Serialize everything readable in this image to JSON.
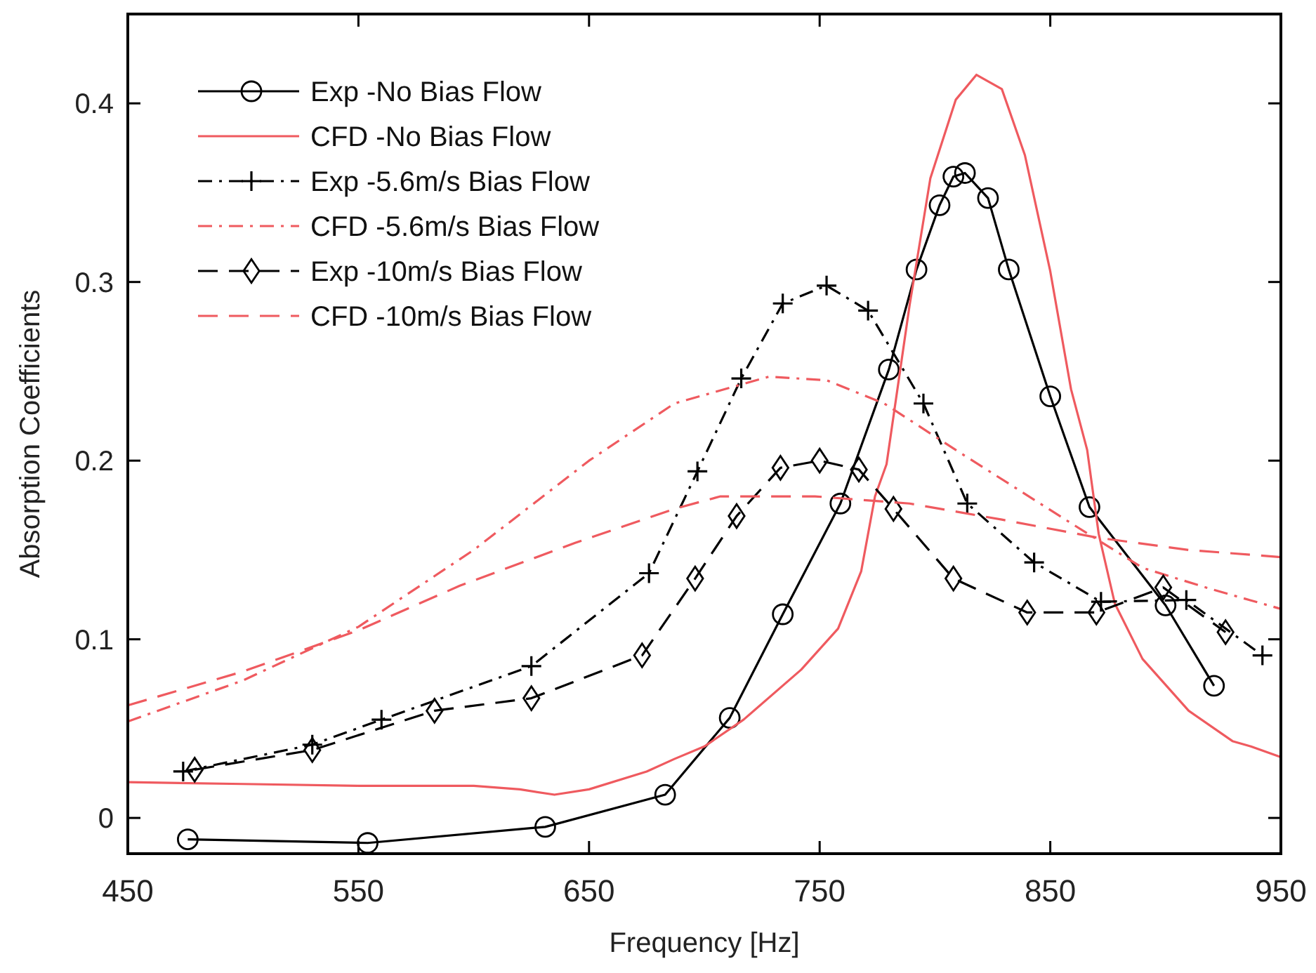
{
  "chart_data": {
    "type": "line",
    "xlabel": "Frequency [Hz]",
    "ylabel": "Absorption Coefficients",
    "xlim": [
      450,
      950
    ],
    "ylim": [
      -0.02,
      0.45
    ],
    "xticks": [
      450,
      550,
      650,
      750,
      850,
      950
    ],
    "yticks": [
      {
        "value": 0,
        "label": "0"
      },
      0.1,
      0.2,
      0.3,
      0.4
    ],
    "grid": false,
    "legend": "top left",
    "series": [
      {
        "name": "Exp -No Bias Flow",
        "color": "#000000",
        "marker": "circle",
        "line_style": "solid",
        "x": [
          476,
          554,
          631,
          683,
          711,
          734,
          759,
          780,
          792,
          802,
          808,
          813,
          823,
          832,
          850,
          867,
          900,
          921
        ],
        "values": [
          -0.012,
          -0.014,
          -0.005,
          0.013,
          0.056,
          0.114,
          0.176,
          0.251,
          0.307,
          0.343,
          0.359,
          0.361,
          0.347,
          0.307,
          0.236,
          0.174,
          0.119,
          0.074
        ]
      },
      {
        "name": "CFD -No Bias Flow",
        "color": "#ef5a5f",
        "marker": "none",
        "line_style": "solid",
        "x": [
          450,
          500,
          550,
          600,
          620,
          635,
          650,
          675,
          687,
          700,
          717,
          742,
          758,
          768,
          774,
          779,
          789,
          798,
          809,
          818,
          829,
          839,
          850,
          859,
          866,
          871,
          878,
          890,
          910,
          929,
          937,
          950
        ],
        "values": [
          0.02,
          0.019,
          0.018,
          0.018,
          0.016,
          0.013,
          0.016,
          0.026,
          0.033,
          0.04,
          0.055,
          0.083,
          0.106,
          0.138,
          0.18,
          0.198,
          0.287,
          0.358,
          0.402,
          0.416,
          0.408,
          0.371,
          0.306,
          0.24,
          0.206,
          0.159,
          0.12,
          0.089,
          0.06,
          0.043,
          0.04,
          0.034
        ]
      },
      {
        "name": "Exp -5.6m/s Bias Flow",
        "color": "#000000",
        "marker": "cross",
        "line_style": "dashdot",
        "x": [
          474,
          530,
          560,
          625,
          676,
          697,
          716,
          734,
          753,
          771,
          795,
          814,
          843,
          872,
          909,
          942
        ],
        "values": [
          0.026,
          0.041,
          0.055,
          0.085,
          0.137,
          0.194,
          0.246,
          0.288,
          0.298,
          0.284,
          0.232,
          0.176,
          0.143,
          0.121,
          0.122,
          0.091
        ]
      },
      {
        "name": "CFD -5.6m/s Bias Flow",
        "color": "#ef5a5f",
        "marker": "none",
        "line_style": "dashdot",
        "x": [
          450,
          500,
          550,
          600,
          650,
          687,
          728,
          753,
          778,
          809,
          859,
          890,
          920,
          950
        ],
        "values": [
          0.054,
          0.077,
          0.107,
          0.15,
          0.2,
          0.232,
          0.247,
          0.245,
          0.232,
          0.206,
          0.165,
          0.14,
          0.128,
          0.117
        ]
      },
      {
        "name": "Exp -10m/s Bias Flow",
        "color": "#000000",
        "marker": "diamond",
        "line_style": "dashed",
        "x": [
          479,
          530,
          583,
          625,
          673,
          696,
          714,
          733,
          750,
          767,
          782,
          808,
          840,
          870,
          899,
          926
        ],
        "values": [
          0.027,
          0.038,
          0.06,
          0.067,
          0.091,
          0.134,
          0.169,
          0.196,
          0.2,
          0.195,
          0.173,
          0.134,
          0.115,
          0.115,
          0.129,
          0.104
        ]
      },
      {
        "name": "CFD -10m/s Bias Flow",
        "color": "#ef5a5f",
        "marker": "none",
        "line_style": "dashed",
        "x": [
          450,
          500,
          550,
          594,
          644,
          687,
          707,
          748,
          789,
          829,
          870,
          910,
          950
        ],
        "values": [
          0.063,
          0.082,
          0.105,
          0.13,
          0.154,
          0.173,
          0.18,
          0.18,
          0.176,
          0.167,
          0.157,
          0.15,
          0.146
        ]
      }
    ]
  }
}
